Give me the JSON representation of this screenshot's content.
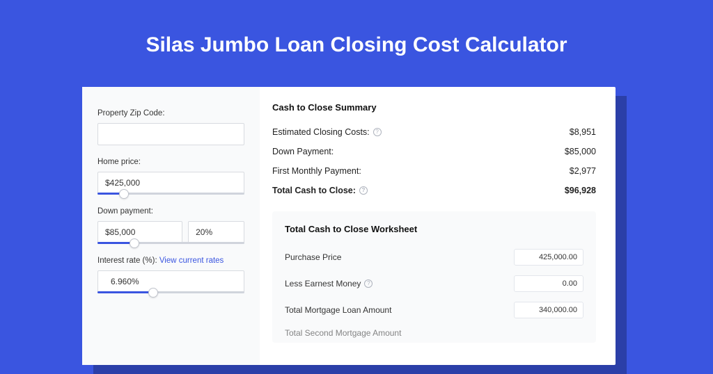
{
  "page": {
    "title": "Silas Jumbo Loan Closing Cost Calculator",
    "background_color": "#3a55e0",
    "shadow_color": "#2b3fa8"
  },
  "form": {
    "zip": {
      "label": "Property Zip Code:",
      "value": ""
    },
    "home_price": {
      "label": "Home price:",
      "value": "$425,000",
      "slider_pct": 18
    },
    "down_payment": {
      "label": "Down payment:",
      "value": "$85,000",
      "pct_value": "20%",
      "slider_pct": 25
    },
    "interest_rate": {
      "label": "Interest rate (%): ",
      "link_text": "View current rates",
      "value": "6.960%",
      "slider_pct": 38
    }
  },
  "summary": {
    "title": "Cash to Close Summary",
    "rows": [
      {
        "label": "Estimated Closing Costs:",
        "help": true,
        "value": "$8,951",
        "bold": false
      },
      {
        "label": "Down Payment:",
        "help": false,
        "value": "$85,000",
        "bold": false
      },
      {
        "label": "First Monthly Payment:",
        "help": false,
        "value": "$2,977",
        "bold": false
      },
      {
        "label": "Total Cash to Close:",
        "help": true,
        "value": "$96,928",
        "bold": true
      }
    ]
  },
  "worksheet": {
    "title": "Total Cash to Close Worksheet",
    "rows": [
      {
        "label": "Purchase Price",
        "help": false,
        "value": "425,000.00"
      },
      {
        "label": "Less Earnest Money",
        "help": true,
        "value": "0.00"
      },
      {
        "label": "Total Mortgage Loan Amount",
        "help": false,
        "value": "340,000.00"
      }
    ],
    "cutoff_label": "Total Second Mortgage Amount"
  }
}
